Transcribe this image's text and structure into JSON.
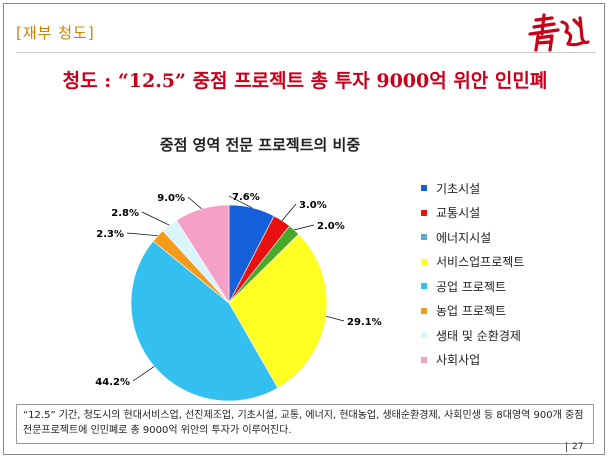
{
  "header": {
    "tag": "[재부 청도]",
    "slide_title": "청도 : “12.5” 중점 프로젝트 총 투자 9000억 위안 인민폐"
  },
  "colors": {
    "red": "#c8001a",
    "tag": "#d08000"
  },
  "chart_data": {
    "type": "pie",
    "title": "중점 영역 전문 프로젝트의 비중",
    "legend_position": "right",
    "slices": [
      {
        "name": "기초시설",
        "value": 7.6,
        "label": "7.6%",
        "color": "#1560d8"
      },
      {
        "name": "교통시설",
        "value": 3.0,
        "label": "3.0%",
        "color": "#e81010"
      },
      {
        "name": "에너지시설",
        "value": 2.0,
        "label": "2.0%",
        "color": "#48a828"
      },
      {
        "name": "서비스업프로젝트",
        "value": 29.1,
        "label": "29.1%",
        "color": "#ffff22"
      },
      {
        "name": "공업 프로젝트",
        "value": 44.2,
        "label": "44.2%",
        "color": "#33bff0"
      },
      {
        "name": "농업 프로젝트",
        "value": 2.3,
        "label": "2.3%",
        "color": "#f59a1a"
      },
      {
        "name": "생태 및 순환경제",
        "value": 2.8,
        "label": "2.8%",
        "color": "#d8f4fc"
      },
      {
        "name": "사회사업",
        "value": 9.0,
        "label": "9.0%",
        "color": "#f5a0c8"
      }
    ],
    "legend_swatch_colors": [
      "#1560d8",
      "#e81010",
      "#5ea8c8",
      "#ffff22",
      "#33bff0",
      "#f59a1a",
      "#d8f4fc",
      "#f5a0c8"
    ]
  },
  "note": "“12.5” 기간, 청도시의 현대서비스업, 선진제조업, 기초시설, 교통, 에너지, 현대농업, 생태순환경제, 사회민생 등 8대영역 900개 중점 전문프로젝트에 인민폐로 총 9000억 위안의 투자가 이루어진다.",
  "page_number": "27"
}
